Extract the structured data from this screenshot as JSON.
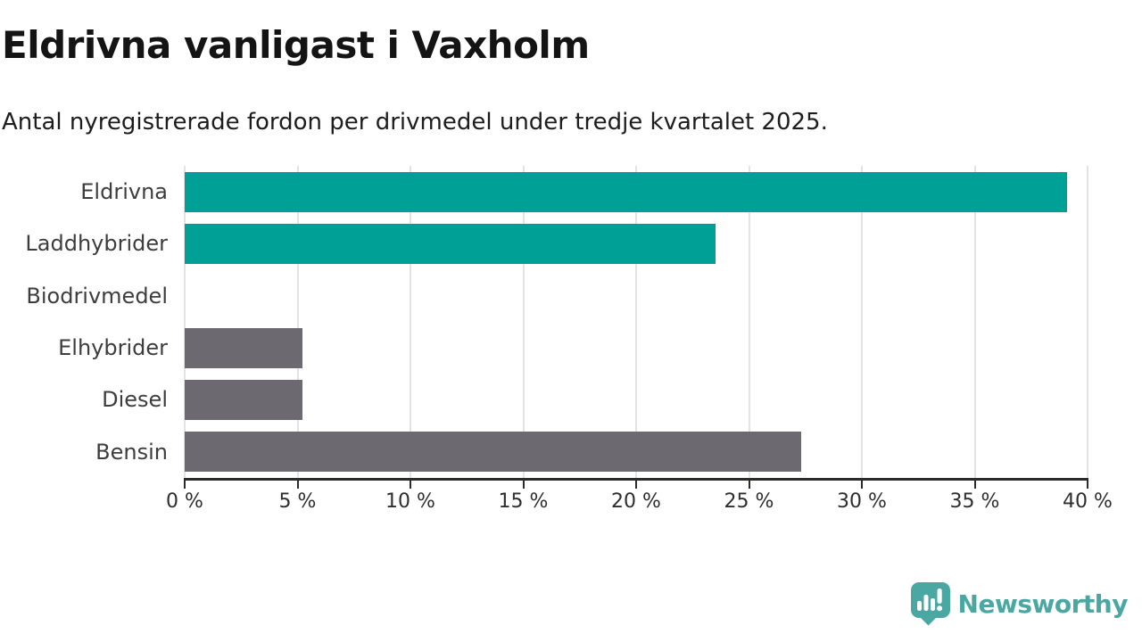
{
  "header": {
    "title": "Eldrivna vanligast i Vaxholm",
    "subtitle": "Antal nyregistrerade fordon per drivmedel under tredje kvartalet 2025."
  },
  "chart_data": {
    "type": "bar",
    "orientation": "horizontal",
    "title": "Eldrivna vanligast i Vaxholm",
    "subtitle": "Antal nyregistrerade fordon per drivmedel under tredje kvartalet 2025.",
    "categories": [
      "Eldrivna",
      "Laddhybrider",
      "Biodrivmedel",
      "Elhybrider",
      "Diesel",
      "Bensin"
    ],
    "values": [
      39.1,
      23.5,
      0,
      5.2,
      5.2,
      27.3
    ],
    "unit": "%",
    "bar_colors": [
      "#00a096",
      "#00a096",
      "#00a096",
      "#6c6a70",
      "#6c6a70",
      "#6c6a70"
    ],
    "xlabel": "",
    "ylabel": "",
    "xlim": [
      0,
      40
    ],
    "xticks": [
      0,
      5,
      10,
      15,
      20,
      25,
      30,
      35,
      40
    ],
    "xtick_labels": [
      "0 %",
      "5 %",
      "10 %",
      "15 %",
      "20 %",
      "25 %",
      "30 %",
      "35 %",
      "40 %"
    ],
    "grid": "vertical",
    "legend": "none"
  },
  "branding": {
    "logo_text": "Newsworthy",
    "logo_icon": "newsworthy-speech-bubble-bar-chart-icon",
    "logo_color": "#4ba7a1"
  },
  "colors": {
    "accent_teal": "#00a096",
    "neutral_gray": "#6c6a70",
    "gridline": "#e3e3e3",
    "axis": "#2b2b2b",
    "title_text": "#141414",
    "label_text": "#3d3d3d"
  }
}
